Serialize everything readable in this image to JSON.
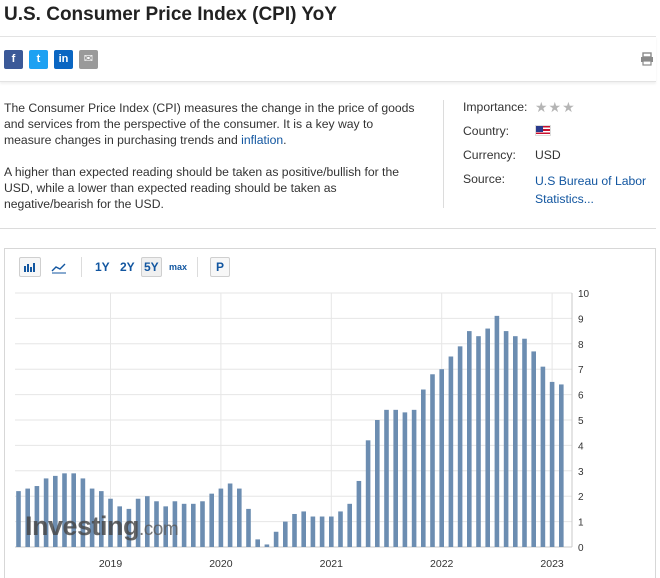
{
  "page": {
    "title": "U.S. Consumer Price Index (CPI) YoY"
  },
  "share": {
    "facebook": "f",
    "twitter": "t",
    "linkedin": "in",
    "email": "✉"
  },
  "description": {
    "p1_prefix": "The Consumer Price Index (CPI) measures the change in the price of goods and services from the perspective of the consumer. It is a key way to measure changes in purchasing trends and ",
    "p1_link": "inflation",
    "p1_suffix": ".",
    "p2": "A higher than expected reading should be taken as positive/bullish for the USD, while a lower than expected reading should be taken as negative/bearish for the USD."
  },
  "info": {
    "importance_label": "Importance:",
    "importance_stars": "★★★",
    "country_label": "Country:",
    "currency_label": "Currency:",
    "currency_value": "USD",
    "source_label": "Source:",
    "source_value": "U.S Bureau of Labor Statistics..."
  },
  "toolbar": {
    "ranges": [
      "1Y",
      "2Y",
      "5Y",
      "max"
    ],
    "active_range": "5Y",
    "p_label": "P"
  },
  "watermark": {
    "main": "Investing",
    "suffix": ".com"
  },
  "colors": {
    "bar": "#6c8db1",
    "bar_faded": "#b7c8da",
    "grid": "#e6e6e6",
    "link": "#1256a0"
  },
  "chart_data": {
    "type": "bar",
    "title": "",
    "xlabel": "",
    "ylabel": "",
    "ylim": [
      0,
      10
    ],
    "yticks": [
      "0",
      "1",
      "2",
      "3",
      "4",
      "5",
      "6",
      "7",
      "8",
      "9",
      "10"
    ],
    "xticks": [
      {
        "label": "2019",
        "index": 10
      },
      {
        "label": "2020",
        "index": 22
      },
      {
        "label": "2021",
        "index": 34
      },
      {
        "label": "2022",
        "index": 46
      },
      {
        "label": "2023",
        "index": 58
      }
    ],
    "series": [
      {
        "values": [
          2.2,
          2.3,
          2.4,
          2.7,
          2.8,
          2.9,
          2.9,
          2.7,
          2.3,
          2.2,
          1.9,
          1.6,
          1.5,
          1.9,
          2.0,
          1.8,
          1.6,
          1.8,
          1.7,
          1.7,
          1.8,
          2.1,
          2.3,
          2.5,
          2.3,
          1.5,
          0.3,
          0.1,
          0.6,
          1.0,
          1.3,
          1.4,
          1.2,
          1.2,
          1.2,
          1.4,
          1.7,
          2.6,
          4.2,
          5.0,
          5.4,
          5.4,
          5.3,
          5.4,
          6.2,
          6.8,
          7.0,
          7.5,
          7.9,
          8.5,
          8.3,
          8.6,
          9.1,
          8.5,
          8.3,
          8.2,
          7.7,
          7.1,
          6.5,
          6.4
        ]
      }
    ]
  }
}
